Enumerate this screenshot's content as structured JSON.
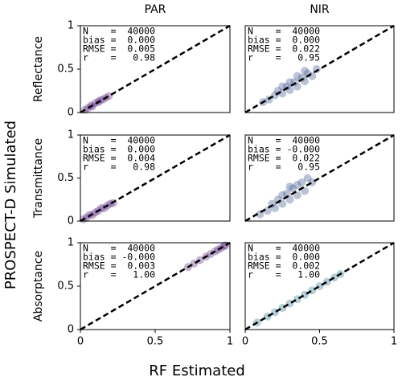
{
  "xlabel": "RF Estimated",
  "ylabel": "PROSPECT-D Simulated",
  "chart_data": [
    {
      "type": "scatter",
      "title": "PAR",
      "ylabel": "Reflectance",
      "color": "#5b2c83",
      "stats": [
        "N    =  40000",
        "bias =  0.000",
        "RMSE =  0.005",
        "r    =   0.98"
      ],
      "x": [
        0.03,
        0.05,
        0.07,
        0.08,
        0.1,
        0.12,
        0.13,
        0.15,
        0.17,
        0.19
      ],
      "y": [
        0.03,
        0.05,
        0.08,
        0.07,
        0.11,
        0.12,
        0.14,
        0.15,
        0.17,
        0.19
      ],
      "xlim": [
        0,
        1
      ],
      "ylim": [
        0,
        1
      ],
      "yticks": [
        0,
        0.5,
        1
      ]
    },
    {
      "type": "scatter",
      "title": "NIR",
      "color": "#3b528b",
      "stats": [
        "N    =  40000",
        "bias =  0.000",
        "RMSE =  0.022",
        "r    =   0.95"
      ],
      "x": [
        0.12,
        0.16,
        0.2,
        0.22,
        0.25,
        0.28,
        0.3,
        0.33,
        0.35,
        0.38,
        0.4,
        0.42,
        0.45,
        0.48,
        0.25,
        0.3,
        0.35,
        0.4
      ],
      "y": [
        0.12,
        0.15,
        0.2,
        0.25,
        0.22,
        0.3,
        0.26,
        0.35,
        0.3,
        0.4,
        0.36,
        0.45,
        0.42,
        0.5,
        0.3,
        0.35,
        0.42,
        0.48
      ],
      "xlim": [
        0,
        1
      ],
      "ylim": [
        0,
        1
      ]
    },
    {
      "type": "scatter",
      "ylabel": "Transmittance",
      "color": "#5b2c83",
      "stats": [
        "N    =  40000",
        "bias =  0.000",
        "RMSE =  0.004",
        "r    =   0.98"
      ],
      "x": [
        0.02,
        0.04,
        0.06,
        0.08,
        0.1,
        0.12,
        0.14,
        0.16,
        0.18,
        0.2,
        0.22
      ],
      "y": [
        0.02,
        0.04,
        0.07,
        0.07,
        0.1,
        0.12,
        0.15,
        0.15,
        0.18,
        0.2,
        0.21
      ],
      "xlim": [
        0,
        1
      ],
      "ylim": [
        0,
        1
      ],
      "yticks": [
        0,
        0.5,
        1
      ]
    },
    {
      "type": "scatter",
      "color": "#3b528b",
      "stats": [
        "N    =  40000",
        "bias = -0.000",
        "RMSE =  0.022",
        "r    =   0.95"
      ],
      "x": [
        0.1,
        0.15,
        0.18,
        0.2,
        0.22,
        0.25,
        0.28,
        0.3,
        0.32,
        0.35,
        0.38,
        0.4,
        0.42,
        0.45,
        0.25,
        0.3,
        0.35
      ],
      "y": [
        0.08,
        0.12,
        0.2,
        0.15,
        0.25,
        0.2,
        0.32,
        0.25,
        0.38,
        0.3,
        0.45,
        0.35,
        0.5,
        0.45,
        0.3,
        0.4,
        0.42
      ],
      "xlim": [
        0,
        1
      ],
      "ylim": [
        0,
        1
      ]
    },
    {
      "type": "scatter",
      "ylabel": "Absorptance",
      "color": "#5b2c83",
      "stats": [
        "N    =  40000",
        "bias = -0.000",
        "RMSE =  0.003",
        "r    =   1.00"
      ],
      "x": [
        0.72,
        0.76,
        0.8,
        0.84,
        0.87,
        0.9,
        0.92,
        0.94,
        0.96,
        0.97
      ],
      "y": [
        0.72,
        0.76,
        0.8,
        0.84,
        0.87,
        0.9,
        0.92,
        0.94,
        0.96,
        0.97
      ],
      "xlim": [
        0,
        1
      ],
      "ylim": [
        0,
        1
      ],
      "xticks": [
        0,
        0.5,
        1
      ],
      "yticks": [
        0,
        0.5,
        1
      ]
    },
    {
      "type": "scatter",
      "color": "#2a788e",
      "stats": [
        "N    =  40000",
        "bias =  0.000",
        "RMSE =  0.002",
        "r    =   1.00"
      ],
      "x": [
        0.08,
        0.15,
        0.2,
        0.25,
        0.3,
        0.35,
        0.4,
        0.45,
        0.5,
        0.55,
        0.6,
        0.64
      ],
      "y": [
        0.08,
        0.15,
        0.2,
        0.25,
        0.3,
        0.35,
        0.4,
        0.45,
        0.5,
        0.55,
        0.6,
        0.64
      ],
      "xlim": [
        0,
        1
      ],
      "ylim": [
        0,
        1
      ],
      "xticks": [
        0,
        0.5,
        1
      ]
    }
  ]
}
